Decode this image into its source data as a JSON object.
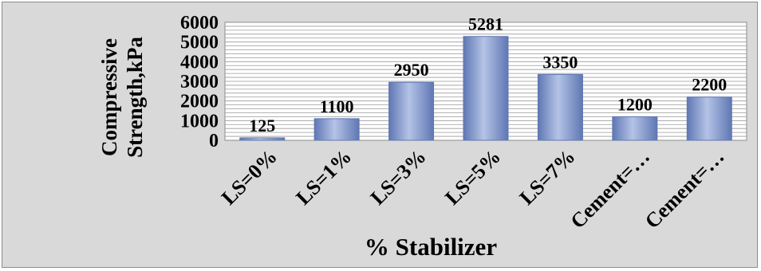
{
  "chart_data": {
    "type": "bar",
    "title": "",
    "xlabel": "% Stabilizer",
    "ylabel_lines": [
      "Compressive",
      "Strength,kPa"
    ],
    "categories": [
      "LS=0%",
      "LS=1%",
      "LS=3%",
      "LS=5%",
      "LS=7%",
      "Cement=…",
      "Cement=…"
    ],
    "values": [
      125,
      1100,
      2950,
      5281,
      3350,
      1200,
      2200
    ],
    "data_labels": [
      "125",
      "1100",
      "2950",
      "5281",
      "3350",
      "1200",
      "2200"
    ],
    "ylim": [
      0,
      6000
    ],
    "yticks": [
      "0",
      "1000",
      "2000",
      "3000",
      "4000",
      "5000",
      "6000"
    ],
    "grid": true,
    "legend": "none",
    "colors": {
      "bar": "#8aa0d2",
      "bar_dark": "#5f77b3",
      "bar_light": "#b4c3e6",
      "plot_bg": "#ffffff",
      "frame_bg": "#d9d9d9",
      "grid": "#9a9a9a"
    }
  }
}
